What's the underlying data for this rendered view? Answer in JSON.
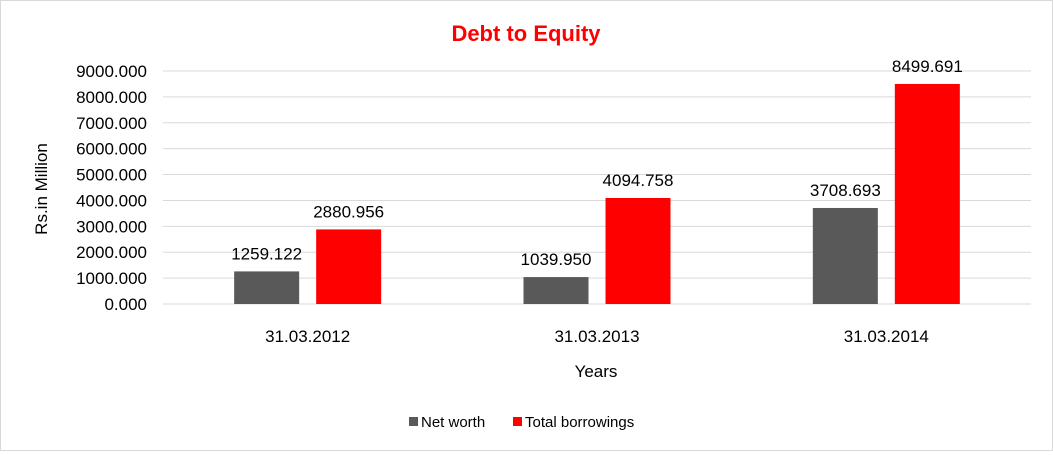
{
  "chart_data": {
    "type": "bar",
    "title": "Debt to Equity",
    "xlabel": "Years",
    "ylabel": "Rs.in Million",
    "categories": [
      "31.03.2012",
      "31.03.2013",
      "31.03.2014"
    ],
    "series": [
      {
        "name": "Net worth",
        "color": "#595959",
        "values": [
          1259.122,
          1039.95,
          3708.693
        ]
      },
      {
        "name": "Total borrowings",
        "color": "#ff0000",
        "values": [
          2880.956,
          4094.758,
          8499.691
        ]
      }
    ],
    "value_labels": [
      [
        "1259.122",
        "1039.950",
        "3708.693"
      ],
      [
        "2880.956",
        "4094.758",
        "8499.691"
      ]
    ],
    "y_ticks": [
      "0.000",
      "1000.000",
      "2000.000",
      "3000.000",
      "4000.000",
      "5000.000",
      "6000.000",
      "7000.000",
      "8000.000",
      "9000.000"
    ],
    "ylim": [
      0,
      9000
    ],
    "grid": true,
    "legend_position": "bottom",
    "title_color": "#ff0000",
    "gridline_color": "#d9d9d9"
  }
}
